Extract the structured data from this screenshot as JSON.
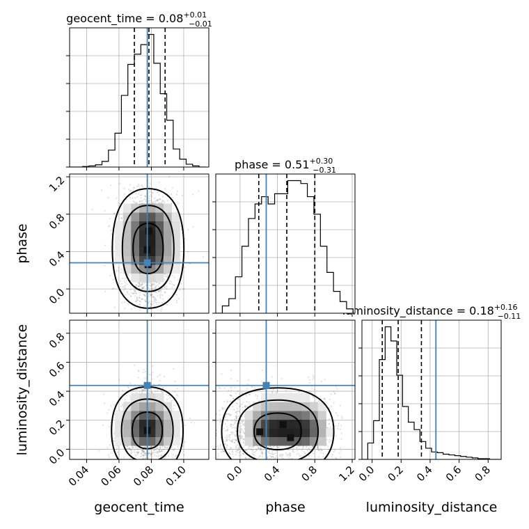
{
  "figure": {
    "type": "corner-plot",
    "parameters": [
      "geocent_time",
      "phase",
      "luminosity_distance"
    ],
    "truth_color": "#4682b4"
  },
  "chart_data": [
    {
      "type": "histogram",
      "parameter": "geocent_time",
      "title": {
        "main": "geocent_time = 0.08",
        "sup": "+0.01",
        "sub": "−0.01"
      },
      "xlim": [
        0.0295,
        0.1155
      ],
      "bin_edges": [
        0.0295,
        0.0335,
        0.0375,
        0.0415,
        0.0455,
        0.0495,
        0.0535,
        0.0575,
        0.0615,
        0.0655,
        0.0695,
        0.0735,
        0.0775,
        0.0815,
        0.0855,
        0.0895,
        0.0935,
        0.0975,
        0.1015,
        0.1055,
        0.1095,
        0.1135
      ],
      "counts": [
        0,
        0,
        1,
        2,
        4,
        10,
        30,
        60,
        127,
        182,
        200,
        217,
        235,
        184,
        130,
        83,
        32,
        14,
        5,
        2,
        0
      ],
      "quantiles": [
        0.0695,
        0.0785,
        0.0885
      ],
      "truth": 0.0775
    },
    {
      "type": "histogram",
      "parameter": "phase",
      "title": {
        "main": "phase = 0.51",
        "sup": "+0.30",
        "sub": "−0.31"
      },
      "xlim": [
        -0.26,
        1.23
      ],
      "bin_edges": [
        -0.26,
        -0.19,
        -0.12,
        -0.05,
        0.02,
        0.09,
        0.16,
        0.23,
        0.3,
        0.37,
        0.44,
        0.51,
        0.58,
        0.65,
        0.72,
        0.79,
        0.86,
        0.93,
        1.0,
        1.07,
        1.14,
        1.21
      ],
      "counts": [
        0,
        5,
        10,
        25,
        46,
        65,
        75,
        80,
        75,
        82,
        82,
        91,
        91,
        89,
        80,
        68,
        46,
        28,
        15,
        8,
        3
      ],
      "quantiles": [
        0.2,
        0.5,
        0.8
      ],
      "truth": 0.28
    },
    {
      "type": "histogram",
      "parameter": "luminosity_distance",
      "title": {
        "main": "luminosity_distance = 0.18",
        "sup": "+0.16",
        "sub": "−0.11"
      },
      "xlim": [
        -0.07,
        0.89
      ],
      "bin_edges": [
        -0.07,
        -0.03,
        0.01,
        0.05,
        0.09,
        0.13,
        0.17,
        0.21,
        0.25,
        0.29,
        0.33,
        0.37,
        0.41,
        0.45,
        0.49,
        0.53,
        0.57,
        0.61,
        0.65,
        0.69,
        0.73,
        0.77,
        0.81,
        0.85,
        0.89
      ],
      "counts": [
        0,
        22,
        52,
        134,
        178,
        159,
        113,
        71,
        50,
        40,
        24,
        15,
        10,
        9,
        7,
        6,
        5,
        4,
        3,
        2,
        1,
        1,
        0,
        0
      ],
      "quantiles": [
        0.07,
        0.18,
        0.34
      ],
      "truth": 0.44
    },
    {
      "type": "2d-density",
      "x": "geocent_time",
      "y": "phase",
      "xlim": [
        0.0295,
        0.1155
      ],
      "ylim": [
        -0.26,
        1.23
      ],
      "peaks": [
        [
          0.0785,
          0.62
        ],
        [
          0.0775,
          0.42
        ],
        [
          0.078,
          0.26
        ]
      ],
      "truth": [
        0.0775,
        0.28
      ]
    },
    {
      "type": "2d-density",
      "x": "geocent_time",
      "y": "luminosity_distance",
      "xlim": [
        0.0295,
        0.1155
      ],
      "ylim": [
        -0.07,
        0.89
      ],
      "peaks": [
        [
          0.0775,
          0.13
        ]
      ],
      "truth": [
        0.0775,
        0.44
      ]
    },
    {
      "type": "2d-density",
      "x": "phase",
      "y": "luminosity_distance",
      "xlim": [
        -0.26,
        1.23
      ],
      "ylim": [
        -0.07,
        0.89
      ],
      "peaks": [
        [
          0.21,
          0.12
        ],
        [
          0.46,
          0.17
        ],
        [
          0.54,
          0.08
        ]
      ],
      "truth": [
        0.28,
        0.44
      ]
    }
  ],
  "axes": {
    "geocent_time": {
      "label": "geocent_time",
      "ticks": [
        0.04,
        0.06,
        0.08,
        0.1
      ],
      "tick_labels": [
        "0.04",
        "0.06",
        "0.08",
        "0.10"
      ]
    },
    "phase": {
      "label": "phase",
      "ticks": [
        0.0,
        0.4,
        0.8,
        1.2
      ],
      "tick_labels": [
        "0.0",
        "0.4",
        "0.8",
        "1.2"
      ]
    },
    "luminosity_distance": {
      "label": "luminosity_distance",
      "ticks": [
        0.0,
        0.2,
        0.4,
        0.6,
        0.8
      ],
      "tick_labels": [
        "0.0",
        "0.2",
        "0.4",
        "0.6",
        "0.8"
      ]
    }
  },
  "grid": true
}
